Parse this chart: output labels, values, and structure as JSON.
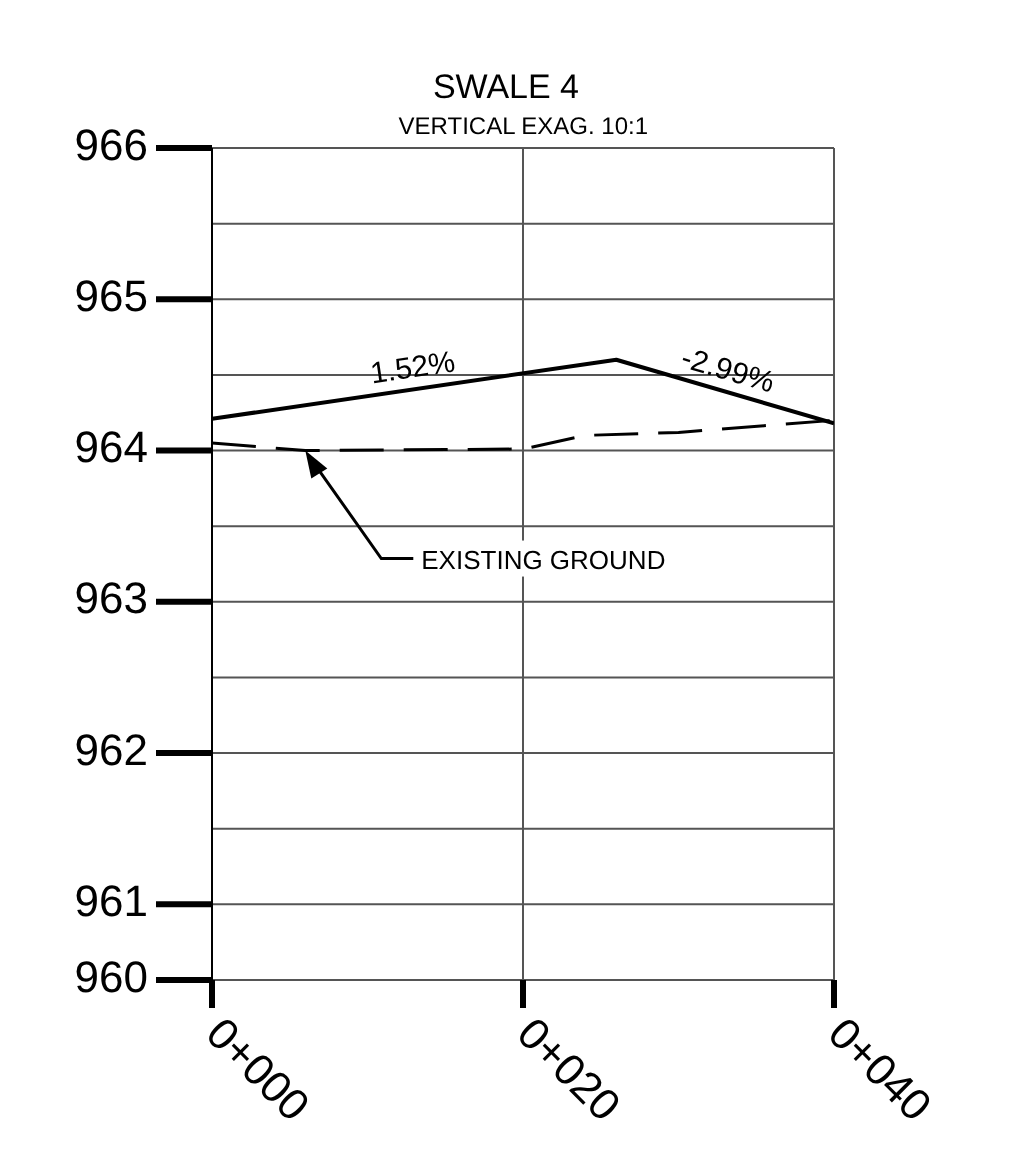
{
  "chart_data": {
    "type": "line",
    "title": "SWALE 4",
    "subtitle": "VERTICAL EXAG. 10:1",
    "categories": [
      "0+000",
      null,
      null,
      null,
      null,
      null,
      null,
      null,
      null,
      null,
      "0+020",
      null,
      null,
      null,
      null,
      null,
      null,
      null,
      null,
      null,
      "0+040"
    ],
    "ylim": [
      960.5,
      966
    ],
    "yticks": [
      {
        "value": 960.5,
        "label": "960"
      },
      961,
      {
        "value": 961.5,
        "label": null
      },
      962,
      {
        "value": 962.5,
        "label": null
      },
      963,
      {
        "value": 963.5,
        "label": null
      },
      964,
      {
        "value": 964.5,
        "label": null
      },
      965,
      {
        "value": 965.5,
        "label": null
      },
      966
    ],
    "grid": true,
    "marker": "none",
    "series": [
      {
        "color": "#000000",
        "line_style": "solid",
        "values": [
          964.21,
          null,
          null,
          null,
          null,
          null,
          null,
          null,
          null,
          null,
          null,
          null,
          null,
          964.6,
          null,
          null,
          null,
          null,
          null,
          null,
          964.18
        ]
      },
      {
        "name": "EXISTING GROUND",
        "color": "#000000",
        "line_style": "dashed",
        "values": [
          964.05,
          null,
          null,
          964.0,
          null,
          null,
          null,
          null,
          null,
          null,
          964.01,
          null,
          964.1,
          null,
          null,
          964.12,
          null,
          null,
          null,
          null,
          964.2
        ]
      }
    ],
    "annotations": [
      "1.52%",
      "-2.99%"
    ]
  }
}
